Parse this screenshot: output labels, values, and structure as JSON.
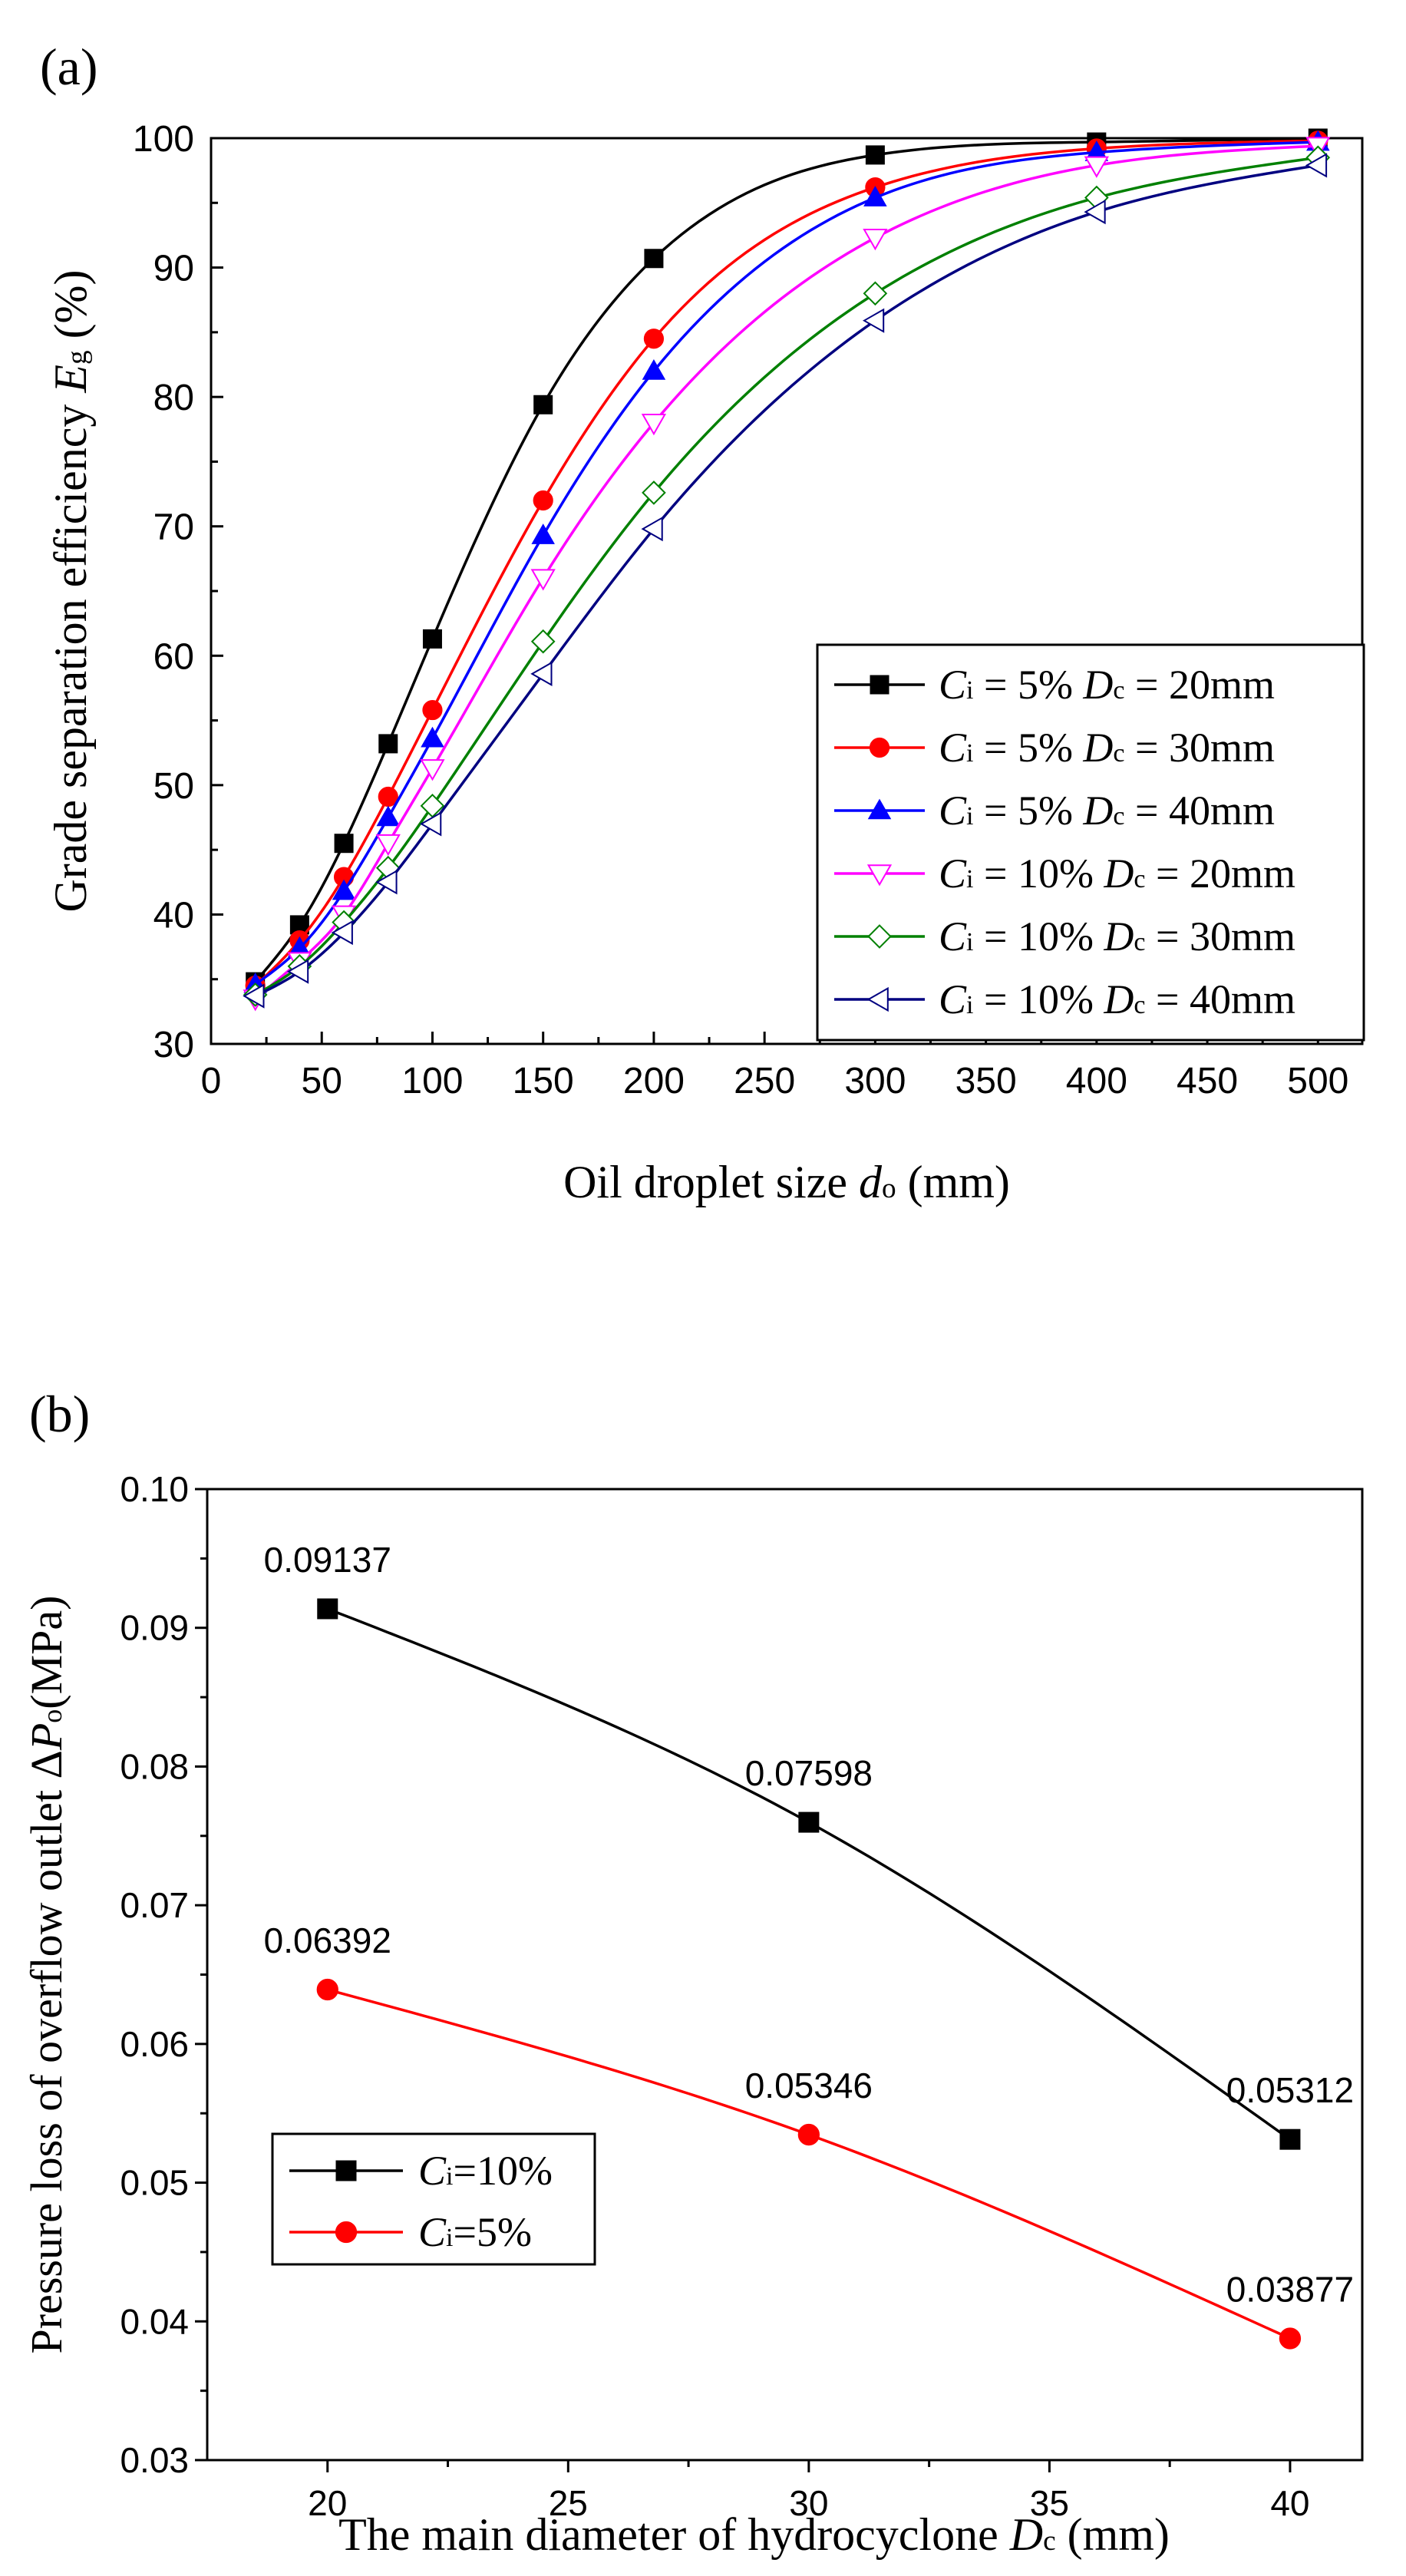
{
  "chart_data": [
    {
      "type": "line",
      "panel_label": "(a)",
      "title": "",
      "xlabel": {
        "main": "Oil droplet size ",
        "var": "d",
        "sub": "o",
        "unit": " (mm)"
      },
      "ylabel": {
        "main": "Grade separation efficiency ",
        "var": "E",
        "sub": "g",
        "unit": " (%)"
      },
      "xlim": [
        0,
        520
      ],
      "ylim": [
        30,
        100
      ],
      "xticks": [
        "0",
        "50",
        "100",
        "150",
        "200",
        "250",
        "300",
        "350",
        "400",
        "450",
        "500"
      ],
      "yticks": [
        "30",
        "40",
        "50",
        "60",
        "70",
        "80",
        "90",
        "100"
      ],
      "x": [
        20,
        40,
        60,
        80,
        100,
        150,
        200,
        300,
        400,
        500
      ],
      "legend_position": "bottom-right",
      "series": [
        {
          "name": "Ci = 5% Dc = 20mm",
          "legend": {
            "ci": "5%",
            "dc": "20mm"
          },
          "color": "#000000",
          "marker": "square",
          "filled": true,
          "values": [
            34.8,
            39.2,
            45.5,
            53.2,
            61.3,
            79.4,
            90.7,
            98.7,
            99.7,
            100.0
          ]
        },
        {
          "name": "Ci = 5% Dc = 30mm",
          "legend": {
            "ci": "5%",
            "dc": "30mm"
          },
          "color": "#ff0000",
          "marker": "circle",
          "filled": true,
          "values": [
            34.5,
            38.0,
            42.9,
            49.1,
            55.8,
            72.0,
            84.5,
            96.2,
            99.2,
            99.8
          ]
        },
        {
          "name": "Ci = 5% Dc = 40mm",
          "legend": {
            "ci": "5%",
            "dc": "40mm"
          },
          "color": "#0000ff",
          "marker": "triangle-up",
          "filled": true,
          "values": [
            34.6,
            37.4,
            41.8,
            47.5,
            53.6,
            69.3,
            82.0,
            95.4,
            98.9,
            99.7
          ]
        },
        {
          "name": "Ci = 10% Dc = 20mm",
          "legend": {
            "ci": "10%",
            "dc": "20mm"
          },
          "color": "#ff00ff",
          "marker": "triangle-down",
          "filled": false,
          "values": [
            33.5,
            36.4,
            40.0,
            45.5,
            51.3,
            66.0,
            78.0,
            92.3,
            97.9,
            99.4
          ]
        },
        {
          "name": "Ci = 10% Dc = 30mm",
          "legend": {
            "ci": "10%",
            "dc": "30mm"
          },
          "color": "#008000",
          "marker": "diamond",
          "filled": false,
          "values": [
            33.8,
            36.0,
            39.4,
            43.6,
            48.4,
            61.1,
            72.6,
            88.0,
            95.4,
            98.5
          ]
        },
        {
          "name": "Ci = 10% Dc = 40mm",
          "legend": {
            "ci": "10%",
            "dc": "40mm"
          },
          "color": "#000080",
          "marker": "triangle-left",
          "filled": false,
          "values": [
            33.7,
            35.6,
            38.6,
            42.5,
            47.0,
            58.6,
            69.8,
            85.9,
            94.3,
            97.9
          ]
        }
      ]
    },
    {
      "type": "line",
      "panel_label": "(b)",
      "title": "",
      "xlabel": {
        "main": "The main diameter of hydrocyclone ",
        "var": "D",
        "sub": "c",
        "unit": " (mm)"
      },
      "ylabel": {
        "main": "Pressure loss of overflow outlet  Δ",
        "var": "P",
        "sub": "o",
        "unit": "(MPa)"
      },
      "xlim": [
        17.5,
        41.5
      ],
      "ylim": [
        0.03,
        0.1
      ],
      "xticks": [
        "20",
        "25",
        "30",
        "35",
        "40"
      ],
      "yticks": [
        "0.03",
        "0.04",
        "0.05",
        "0.06",
        "0.07",
        "0.08",
        "0.09",
        "0.10"
      ],
      "x": [
        20,
        30,
        40
      ],
      "legend_position": "bottom-left",
      "series": [
        {
          "name": "Ci=10%",
          "legend": {
            "ci": "=10%"
          },
          "color": "#000000",
          "marker": "square",
          "filled": true,
          "values": [
            0.09137,
            0.07598,
            0.05312
          ],
          "labels": [
            "0.09137",
            "0.07598",
            "0.05312"
          ]
        },
        {
          "name": "Ci=5%",
          "legend": {
            "ci": "=5%"
          },
          "color": "#ff0000",
          "marker": "circle",
          "filled": true,
          "values": [
            0.06392,
            0.05346,
            0.03877
          ],
          "labels": [
            "0.06392",
            "0.05346",
            "0.03877"
          ]
        }
      ]
    }
  ]
}
